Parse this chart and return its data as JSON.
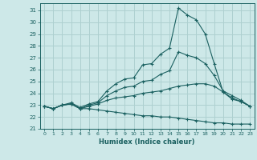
{
  "xlabel": "Humidex (Indice chaleur)",
  "background_color": "#cde8e8",
  "grid_color": "#aed0d0",
  "line_color": "#1a6060",
  "xlim": [
    -0.5,
    23.5
  ],
  "ylim": [
    21,
    31.6
  ],
  "xticks": [
    0,
    1,
    2,
    3,
    4,
    5,
    6,
    7,
    8,
    9,
    10,
    11,
    12,
    13,
    14,
    15,
    16,
    17,
    18,
    19,
    20,
    21,
    22,
    23
  ],
  "yticks": [
    21,
    22,
    23,
    24,
    25,
    26,
    27,
    28,
    29,
    30,
    31
  ],
  "line_max": {
    "x": [
      0,
      1,
      2,
      3,
      4,
      5,
      6,
      7,
      8,
      9,
      10,
      11,
      12,
      13,
      14,
      15,
      16,
      17,
      18,
      19,
      20,
      21,
      22,
      23
    ],
    "y": [
      22.9,
      22.7,
      23.0,
      23.2,
      22.8,
      23.1,
      23.3,
      24.2,
      24.8,
      25.2,
      25.3,
      26.4,
      26.5,
      27.3,
      27.8,
      31.2,
      30.6,
      30.2,
      29.0,
      26.5,
      24.1,
      23.5,
      23.3,
      22.9
    ]
  },
  "line_upper": {
    "x": [
      0,
      1,
      2,
      3,
      4,
      5,
      6,
      7,
      8,
      9,
      10,
      11,
      12,
      13,
      14,
      15,
      16,
      17,
      18,
      19,
      20,
      21,
      22,
      23
    ],
    "y": [
      22.9,
      22.7,
      23.0,
      23.1,
      22.7,
      23.0,
      23.2,
      23.8,
      24.2,
      24.5,
      24.6,
      25.0,
      25.1,
      25.6,
      25.9,
      27.5,
      27.2,
      27.0,
      26.5,
      25.5,
      24.2,
      23.8,
      23.4,
      22.9
    ]
  },
  "line_mean": {
    "x": [
      0,
      1,
      2,
      3,
      4,
      5,
      6,
      7,
      8,
      9,
      10,
      11,
      12,
      13,
      14,
      15,
      16,
      17,
      18,
      19,
      20,
      21,
      22,
      23
    ],
    "y": [
      22.9,
      22.7,
      23.0,
      23.1,
      22.7,
      22.9,
      23.1,
      23.4,
      23.6,
      23.7,
      23.8,
      24.0,
      24.1,
      24.2,
      24.4,
      24.6,
      24.7,
      24.8,
      24.8,
      24.6,
      24.1,
      23.6,
      23.3,
      22.9
    ]
  },
  "line_min": {
    "x": [
      0,
      1,
      2,
      3,
      4,
      5,
      6,
      7,
      8,
      9,
      10,
      11,
      12,
      13,
      14,
      15,
      16,
      17,
      18,
      19,
      20,
      21,
      22,
      23
    ],
    "y": [
      22.9,
      22.7,
      23.0,
      23.1,
      22.7,
      22.7,
      22.6,
      22.5,
      22.4,
      22.3,
      22.2,
      22.1,
      22.1,
      22.0,
      22.0,
      21.9,
      21.8,
      21.7,
      21.6,
      21.5,
      21.5,
      21.4,
      21.4,
      21.4
    ]
  }
}
